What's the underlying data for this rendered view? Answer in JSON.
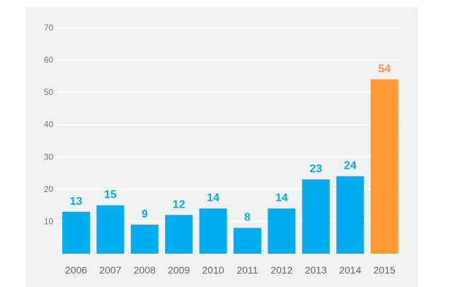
{
  "chart_data": {
    "type": "bar",
    "categories": [
      "2006",
      "2007",
      "2008",
      "2009",
      "2010",
      "2011",
      "2012",
      "2013",
      "2014",
      "2015"
    ],
    "values": [
      13,
      15,
      9,
      12,
      14,
      8,
      14,
      23,
      24,
      54
    ],
    "ylim": [
      0,
      70
    ],
    "yticks": [
      "10",
      "20",
      "30",
      "40",
      "50",
      "60",
      "70"
    ],
    "grid": true,
    "colors": {
      "default": "#00aeef",
      "highlight": "#ff9933",
      "highlight_index": 9,
      "grid": "#ffffff",
      "background": "#f2f2f2"
    }
  }
}
